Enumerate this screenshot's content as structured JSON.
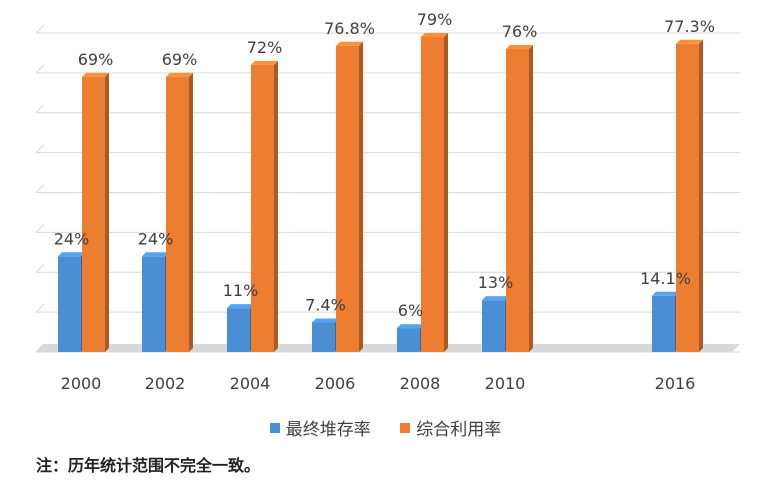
{
  "chart_data": {
    "type": "bar",
    "categories": [
      "2000",
      "2002",
      "2004",
      "2006",
      "2008",
      "2010",
      "2016"
    ],
    "series": [
      {
        "name": "最终堆存率",
        "color": "#4a8fd4",
        "values": [
          24,
          24,
          11,
          7.4,
          6,
          13,
          14.1
        ],
        "labels": [
          "24%",
          "24%",
          "11%",
          "7.4%",
          "6%",
          "13%",
          "14.1%"
        ]
      },
      {
        "name": "综合利用率",
        "color": "#ed7d31",
        "values": [
          69,
          69,
          72,
          76.8,
          79,
          76,
          77.3
        ],
        "labels": [
          "69%",
          "69%",
          "72%",
          "76.8%",
          "79%",
          "76%",
          "77.3%"
        ]
      }
    ],
    "ylim": [
      0,
      80
    ],
    "grid": true,
    "legend_position": "bottom"
  },
  "note": "注：历年统计范围不完全一致。"
}
